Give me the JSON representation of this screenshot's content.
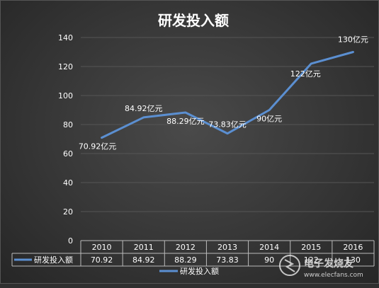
{
  "chart_data": {
    "type": "line",
    "title": "研发投入额",
    "categories": [
      "2010",
      "2011",
      "2012",
      "2013",
      "2014",
      "2015",
      "2016"
    ],
    "series": [
      {
        "name": "研发投入额",
        "values": [
          70.92,
          84.92,
          88.29,
          73.83,
          90,
          122,
          130
        ],
        "data_labels": [
          "70.92亿元",
          "84.92亿元",
          "88.29亿元",
          "73.83亿元",
          "90亿元",
          "122亿元",
          "130亿元"
        ],
        "table_values": [
          "70.92",
          "84.92",
          "88.29",
          "73.83",
          "90",
          "122",
          "130"
        ],
        "color": "#5b8fd1"
      }
    ],
    "ylim": [
      0,
      140
    ],
    "yticks": [
      "0",
      "20",
      "40",
      "60",
      "80",
      "100",
      "120",
      "140"
    ],
    "grid": true,
    "data_table": true,
    "legend_position": "bottom"
  },
  "watermark": {
    "text": "电子发烧友",
    "url": "www.elecfans.com"
  },
  "colors": {
    "line": "#5b8fd1",
    "text": "#ffffff",
    "grid": "#555555"
  }
}
